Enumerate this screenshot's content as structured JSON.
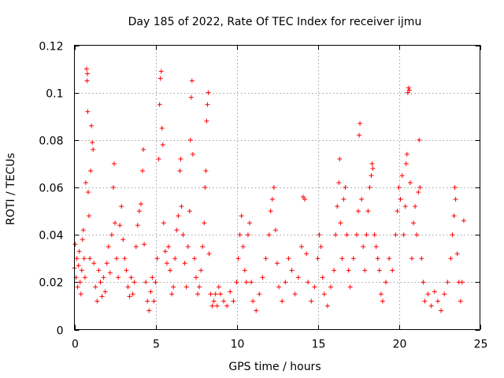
{
  "chart_data": {
    "type": "scatter",
    "title": "Day 185 of 2022, Rate Of TEC Index for receiver ijmu",
    "xlabel": "GPS time / hours",
    "ylabel": "ROTI / TECUs",
    "xlim": [
      0,
      25
    ],
    "ylim": [
      0,
      0.12
    ],
    "grid": true,
    "xticks": [
      0,
      5,
      10,
      15,
      20,
      25
    ],
    "xtick_labels": [
      "0",
      "5",
      "10",
      "15",
      "20",
      "25"
    ],
    "yticks": [
      0,
      0.02,
      0.04,
      0.06,
      0.08,
      0.1,
      0.12
    ],
    "ytick_labels": [
      "0",
      "0.02",
      "0.04",
      "0.06",
      "0.08",
      "0.1",
      "0.12"
    ],
    "marker": "+",
    "color": "#ff0000",
    "series": [
      {
        "name": "ROTI",
        "points": [
          [
            0.0,
            0.026
          ],
          [
            0.05,
            0.036
          ],
          [
            0.1,
            0.022
          ],
          [
            0.15,
            0.03
          ],
          [
            0.2,
            0.018
          ],
          [
            0.25,
            0.027
          ],
          [
            0.3,
            0.033
          ],
          [
            0.35,
            0.02
          ],
          [
            0.4,
            0.015
          ],
          [
            0.45,
            0.025
          ],
          [
            0.5,
            0.038
          ],
          [
            0.55,
            0.042
          ],
          [
            0.6,
            0.03
          ],
          [
            0.65,
            0.022
          ],
          [
            0.7,
            0.062
          ],
          [
            0.75,
            0.11
          ],
          [
            0.78,
            0.105
          ],
          [
            0.8,
            0.108
          ],
          [
            0.82,
            0.092
          ],
          [
            0.85,
            0.058
          ],
          [
            0.9,
            0.048
          ],
          [
            0.95,
            0.03
          ],
          [
            1.0,
            0.067
          ],
          [
            1.05,
            0.086
          ],
          [
            1.1,
            0.079
          ],
          [
            1.15,
            0.076
          ],
          [
            1.2,
            0.028
          ],
          [
            1.3,
            0.018
          ],
          [
            1.4,
            0.012
          ],
          [
            1.5,
            0.025
          ],
          [
            1.6,
            0.02
          ],
          [
            1.7,
            0.014
          ],
          [
            1.8,
            0.022
          ],
          [
            1.9,
            0.016
          ],
          [
            2.0,
            0.028
          ],
          [
            2.1,
            0.035
          ],
          [
            2.2,
            0.024
          ],
          [
            2.3,
            0.04
          ],
          [
            2.4,
            0.06
          ],
          [
            2.45,
            0.07
          ],
          [
            2.5,
            0.045
          ],
          [
            2.6,
            0.03
          ],
          [
            2.7,
            0.022
          ],
          [
            2.8,
            0.044
          ],
          [
            2.9,
            0.052
          ],
          [
            3.0,
            0.038
          ],
          [
            3.1,
            0.03
          ],
          [
            3.2,
            0.025
          ],
          [
            3.3,
            0.018
          ],
          [
            3.4,
            0.014
          ],
          [
            3.5,
            0.022
          ],
          [
            3.6,
            0.015
          ],
          [
            3.7,
            0.02
          ],
          [
            3.8,
            0.035
          ],
          [
            3.9,
            0.044
          ],
          [
            4.0,
            0.05
          ],
          [
            4.1,
            0.053
          ],
          [
            4.2,
            0.067
          ],
          [
            4.25,
            0.076
          ],
          [
            4.3,
            0.036
          ],
          [
            4.4,
            0.02
          ],
          [
            4.5,
            0.012
          ],
          [
            4.6,
            0.008
          ],
          [
            4.7,
            0.016
          ],
          [
            4.8,
            0.022
          ],
          [
            4.9,
            0.012
          ],
          [
            5.0,
            0.02
          ],
          [
            5.1,
            0.03
          ],
          [
            5.2,
            0.072
          ],
          [
            5.25,
            0.095
          ],
          [
            5.3,
            0.106
          ],
          [
            5.35,
            0.109
          ],
          [
            5.4,
            0.085
          ],
          [
            5.45,
            0.078
          ],
          [
            5.5,
            0.045
          ],
          [
            5.6,
            0.033
          ],
          [
            5.7,
            0.028
          ],
          [
            5.8,
            0.035
          ],
          [
            5.9,
            0.025
          ],
          [
            6.0,
            0.015
          ],
          [
            6.1,
            0.018
          ],
          [
            6.2,
            0.03
          ],
          [
            6.3,
            0.042
          ],
          [
            6.4,
            0.048
          ],
          [
            6.5,
            0.067
          ],
          [
            6.55,
            0.072
          ],
          [
            6.6,
            0.052
          ],
          [
            6.7,
            0.04
          ],
          [
            6.8,
            0.028
          ],
          [
            6.9,
            0.018
          ],
          [
            7.0,
            0.035
          ],
          [
            7.1,
            0.05
          ],
          [
            7.15,
            0.08
          ],
          [
            7.2,
            0.098
          ],
          [
            7.25,
            0.105
          ],
          [
            7.3,
            0.074
          ],
          [
            7.4,
            0.03
          ],
          [
            7.5,
            0.022
          ],
          [
            7.6,
            0.015
          ],
          [
            7.7,
            0.018
          ],
          [
            7.8,
            0.025
          ],
          [
            7.9,
            0.035
          ],
          [
            8.0,
            0.045
          ],
          [
            8.05,
            0.06
          ],
          [
            8.1,
            0.067
          ],
          [
            8.15,
            0.088
          ],
          [
            8.2,
            0.095
          ],
          [
            8.25,
            0.1
          ],
          [
            8.3,
            0.032
          ],
          [
            8.4,
            0.015
          ],
          [
            8.5,
            0.01
          ],
          [
            8.6,
            0.012
          ],
          [
            8.7,
            0.015
          ],
          [
            8.8,
            0.01
          ],
          [
            8.9,
            0.018
          ],
          [
            9.0,
            0.015
          ],
          [
            9.2,
            0.012
          ],
          [
            9.4,
            0.01
          ],
          [
            9.6,
            0.016
          ],
          [
            9.8,
            0.012
          ],
          [
            10.0,
            0.02
          ],
          [
            10.1,
            0.03
          ],
          [
            10.2,
            0.04
          ],
          [
            10.3,
            0.048
          ],
          [
            10.4,
            0.035
          ],
          [
            10.5,
            0.025
          ],
          [
            10.6,
            0.02
          ],
          [
            10.7,
            0.04
          ],
          [
            10.8,
            0.045
          ],
          [
            10.9,
            0.02
          ],
          [
            11.0,
            0.012
          ],
          [
            11.2,
            0.008
          ],
          [
            11.4,
            0.015
          ],
          [
            11.6,
            0.022
          ],
          [
            11.8,
            0.03
          ],
          [
            12.0,
            0.04
          ],
          [
            12.1,
            0.05
          ],
          [
            12.2,
            0.055
          ],
          [
            12.3,
            0.06
          ],
          [
            12.4,
            0.042
          ],
          [
            12.5,
            0.028
          ],
          [
            12.6,
            0.018
          ],
          [
            12.8,
            0.012
          ],
          [
            13.0,
            0.02
          ],
          [
            13.2,
            0.03
          ],
          [
            13.4,
            0.025
          ],
          [
            13.6,
            0.015
          ],
          [
            13.8,
            0.022
          ],
          [
            14.0,
            0.035
          ],
          [
            14.1,
            0.056
          ],
          [
            14.2,
            0.055
          ],
          [
            14.3,
            0.032
          ],
          [
            14.4,
            0.02
          ],
          [
            14.6,
            0.012
          ],
          [
            14.8,
            0.018
          ],
          [
            15.0,
            0.03
          ],
          [
            15.1,
            0.04
          ],
          [
            15.2,
            0.035
          ],
          [
            15.3,
            0.022
          ],
          [
            15.4,
            0.015
          ],
          [
            15.6,
            0.01
          ],
          [
            15.8,
            0.018
          ],
          [
            16.0,
            0.025
          ],
          [
            16.1,
            0.04
          ],
          [
            16.2,
            0.052
          ],
          [
            16.3,
            0.062
          ],
          [
            16.35,
            0.072
          ],
          [
            16.4,
            0.045
          ],
          [
            16.5,
            0.03
          ],
          [
            16.6,
            0.055
          ],
          [
            16.7,
            0.06
          ],
          [
            16.8,
            0.04
          ],
          [
            16.9,
            0.025
          ],
          [
            17.0,
            0.018
          ],
          [
            17.2,
            0.03
          ],
          [
            17.4,
            0.04
          ],
          [
            17.5,
            0.05
          ],
          [
            17.55,
            0.082
          ],
          [
            17.6,
            0.087
          ],
          [
            17.7,
            0.055
          ],
          [
            17.8,
            0.035
          ],
          [
            17.9,
            0.025
          ],
          [
            18.0,
            0.04
          ],
          [
            18.1,
            0.05
          ],
          [
            18.2,
            0.06
          ],
          [
            18.3,
            0.065
          ],
          [
            18.35,
            0.07
          ],
          [
            18.4,
            0.068
          ],
          [
            18.5,
            0.04
          ],
          [
            18.6,
            0.035
          ],
          [
            18.7,
            0.03
          ],
          [
            18.8,
            0.025
          ],
          [
            18.9,
            0.015
          ],
          [
            19.0,
            0.012
          ],
          [
            19.2,
            0.02
          ],
          [
            19.4,
            0.03
          ],
          [
            19.6,
            0.025
          ],
          [
            19.8,
            0.04
          ],
          [
            19.9,
            0.05
          ],
          [
            20.0,
            0.06
          ],
          [
            20.1,
            0.055
          ],
          [
            20.2,
            0.065
          ],
          [
            20.3,
            0.04
          ],
          [
            20.4,
            0.052
          ],
          [
            20.45,
            0.07
          ],
          [
            20.5,
            0.074
          ],
          [
            20.55,
            0.1
          ],
          [
            20.6,
            0.102
          ],
          [
            20.65,
            0.101
          ],
          [
            20.7,
            0.062
          ],
          [
            20.8,
            0.03
          ],
          [
            20.9,
            0.045
          ],
          [
            21.0,
            0.052
          ],
          [
            21.1,
            0.04
          ],
          [
            21.2,
            0.058
          ],
          [
            21.25,
            0.08
          ],
          [
            21.3,
            0.06
          ],
          [
            21.4,
            0.03
          ],
          [
            21.5,
            0.02
          ],
          [
            21.6,
            0.012
          ],
          [
            21.8,
            0.015
          ],
          [
            22.0,
            0.01
          ],
          [
            22.2,
            0.016
          ],
          [
            22.4,
            0.012
          ],
          [
            22.6,
            0.008
          ],
          [
            22.8,
            0.015
          ],
          [
            23.0,
            0.02
          ],
          [
            23.2,
            0.03
          ],
          [
            23.3,
            0.04
          ],
          [
            23.4,
            0.048
          ],
          [
            23.45,
            0.06
          ],
          [
            23.5,
            0.055
          ],
          [
            23.6,
            0.032
          ],
          [
            23.7,
            0.02
          ],
          [
            23.8,
            0.012
          ],
          [
            23.9,
            0.02
          ],
          [
            24.0,
            0.046
          ]
        ]
      }
    ]
  }
}
